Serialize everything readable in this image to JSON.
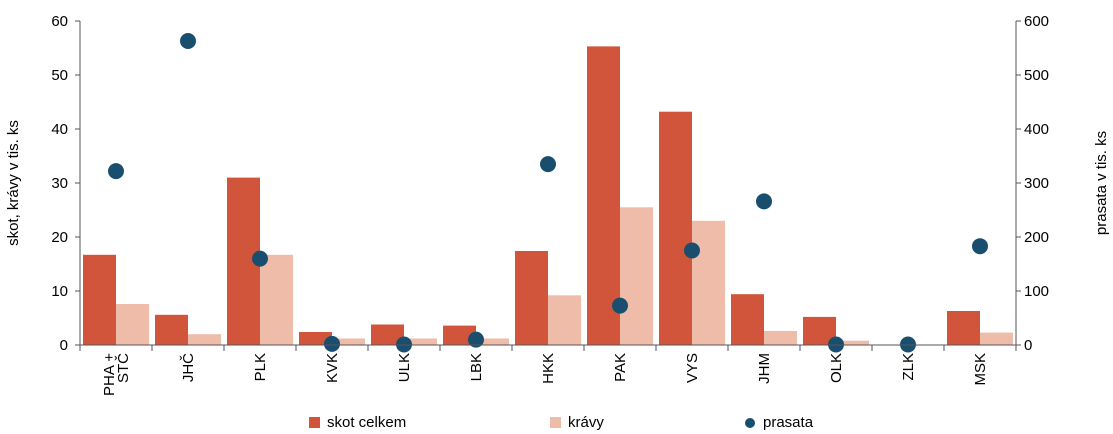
{
  "chart_data": {
    "type": "bar",
    "categories": [
      "PHA + STČ",
      "JHČ",
      "PLK",
      "KVK",
      "ULK",
      "LBK",
      "HKK",
      "PAK",
      "VYS",
      "JHM",
      "OLK",
      "ZLK",
      "MSK"
    ],
    "series": [
      {
        "name": "skot celkem",
        "axis": "left",
        "mark": "bar",
        "color": "#d0553a",
        "values": [
          16.7,
          5.6,
          31.0,
          2.4,
          3.8,
          3.6,
          17.4,
          55.3,
          43.2,
          9.4,
          5.2,
          0,
          6.3
        ]
      },
      {
        "name": "krávy",
        "axis": "left",
        "mark": "bar",
        "color": "#efbcaa",
        "values": [
          7.6,
          2.0,
          16.7,
          1.2,
          1.2,
          1.2,
          9.2,
          25.5,
          23.0,
          2.6,
          0.8,
          0,
          2.3
        ]
      },
      {
        "name": "prasata",
        "axis": "right",
        "mark": "dot",
        "color": "#1a4e6e",
        "values": [
          322,
          563,
          160,
          2,
          1,
          10,
          335,
          73,
          175,
          266,
          1,
          1,
          183
        ]
      }
    ],
    "ylabel": "skot, krávy v tis. ks",
    "y2label": "prasata v tis. ks",
    "ylim": [
      0,
      60
    ],
    "y2lim": [
      0,
      600
    ],
    "yticks": [
      0,
      10,
      20,
      30,
      40,
      50,
      60
    ],
    "y2ticks": [
      0,
      100,
      200,
      300,
      400,
      500,
      600
    ],
    "legend_position": "bottom",
    "grid": false
  }
}
